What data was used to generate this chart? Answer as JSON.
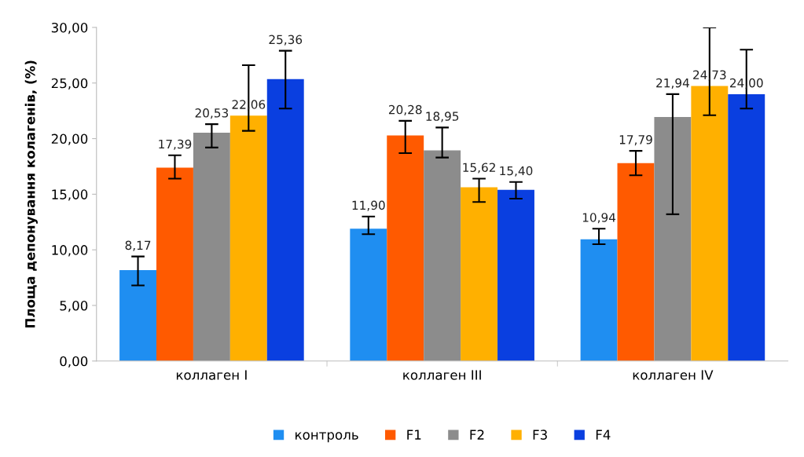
{
  "chart_data": {
    "type": "bar",
    "ylabel": "Площа депонування колагенів, (%)",
    "categories": [
      "коллаген I",
      "коллаген III",
      "коллаген IV"
    ],
    "series": [
      {
        "name": "контроль",
        "color": "#1f8ef1",
        "values": [
          8.17,
          11.9,
          10.94
        ],
        "value_labels": [
          "8,17",
          "11,90",
          "10,94"
        ],
        "errors": [
          [
            6.8,
            9.4
          ],
          [
            11.4,
            13.0
          ],
          [
            10.5,
            11.9
          ]
        ]
      },
      {
        "name": "F1",
        "color": "#ff5a00",
        "values": [
          17.39,
          20.28,
          17.79
        ],
        "value_labels": [
          "17,39",
          "20,28",
          "17,79"
        ],
        "errors": [
          [
            16.4,
            18.5
          ],
          [
            18.7,
            21.6
          ],
          [
            16.7,
            18.9
          ]
        ]
      },
      {
        "name": "F2",
        "color": "#8c8c8c",
        "values": [
          20.53,
          18.95,
          21.94
        ],
        "value_labels": [
          "20,53",
          "18,95",
          "21,94"
        ],
        "errors": [
          [
            19.2,
            21.3
          ],
          [
            18.3,
            21.0
          ],
          [
            13.2,
            24.0
          ]
        ]
      },
      {
        "name": "F3",
        "color": "#ffb000",
        "values": [
          22.06,
          15.62,
          24.73
        ],
        "value_labels": [
          "22,06",
          "15,62",
          "24,73"
        ],
        "errors": [
          [
            20.7,
            26.6
          ],
          [
            14.3,
            16.4
          ],
          [
            22.1,
            30.0
          ]
        ]
      },
      {
        "name": "F4",
        "color": "#0a3fe0",
        "values": [
          25.36,
          15.4,
          24.0
        ],
        "value_labels": [
          "25,36",
          "15,40",
          "24,00"
        ],
        "errors": [
          [
            22.7,
            27.9
          ],
          [
            14.6,
            16.1
          ],
          [
            22.7,
            28.0
          ]
        ]
      }
    ],
    "ylim": [
      0,
      30
    ],
    "yticks": [
      {
        "value": 0,
        "label": "0,00"
      },
      {
        "value": 5,
        "label": "5,00"
      },
      {
        "value": 10,
        "label": "10,00"
      },
      {
        "value": 15,
        "label": "15,00"
      },
      {
        "value": 20,
        "label": "20,00"
      },
      {
        "value": 25,
        "label": "25,00"
      },
      {
        "value": 30,
        "label": "30,00"
      }
    ],
    "grid": false,
    "legend": "bottom"
  }
}
